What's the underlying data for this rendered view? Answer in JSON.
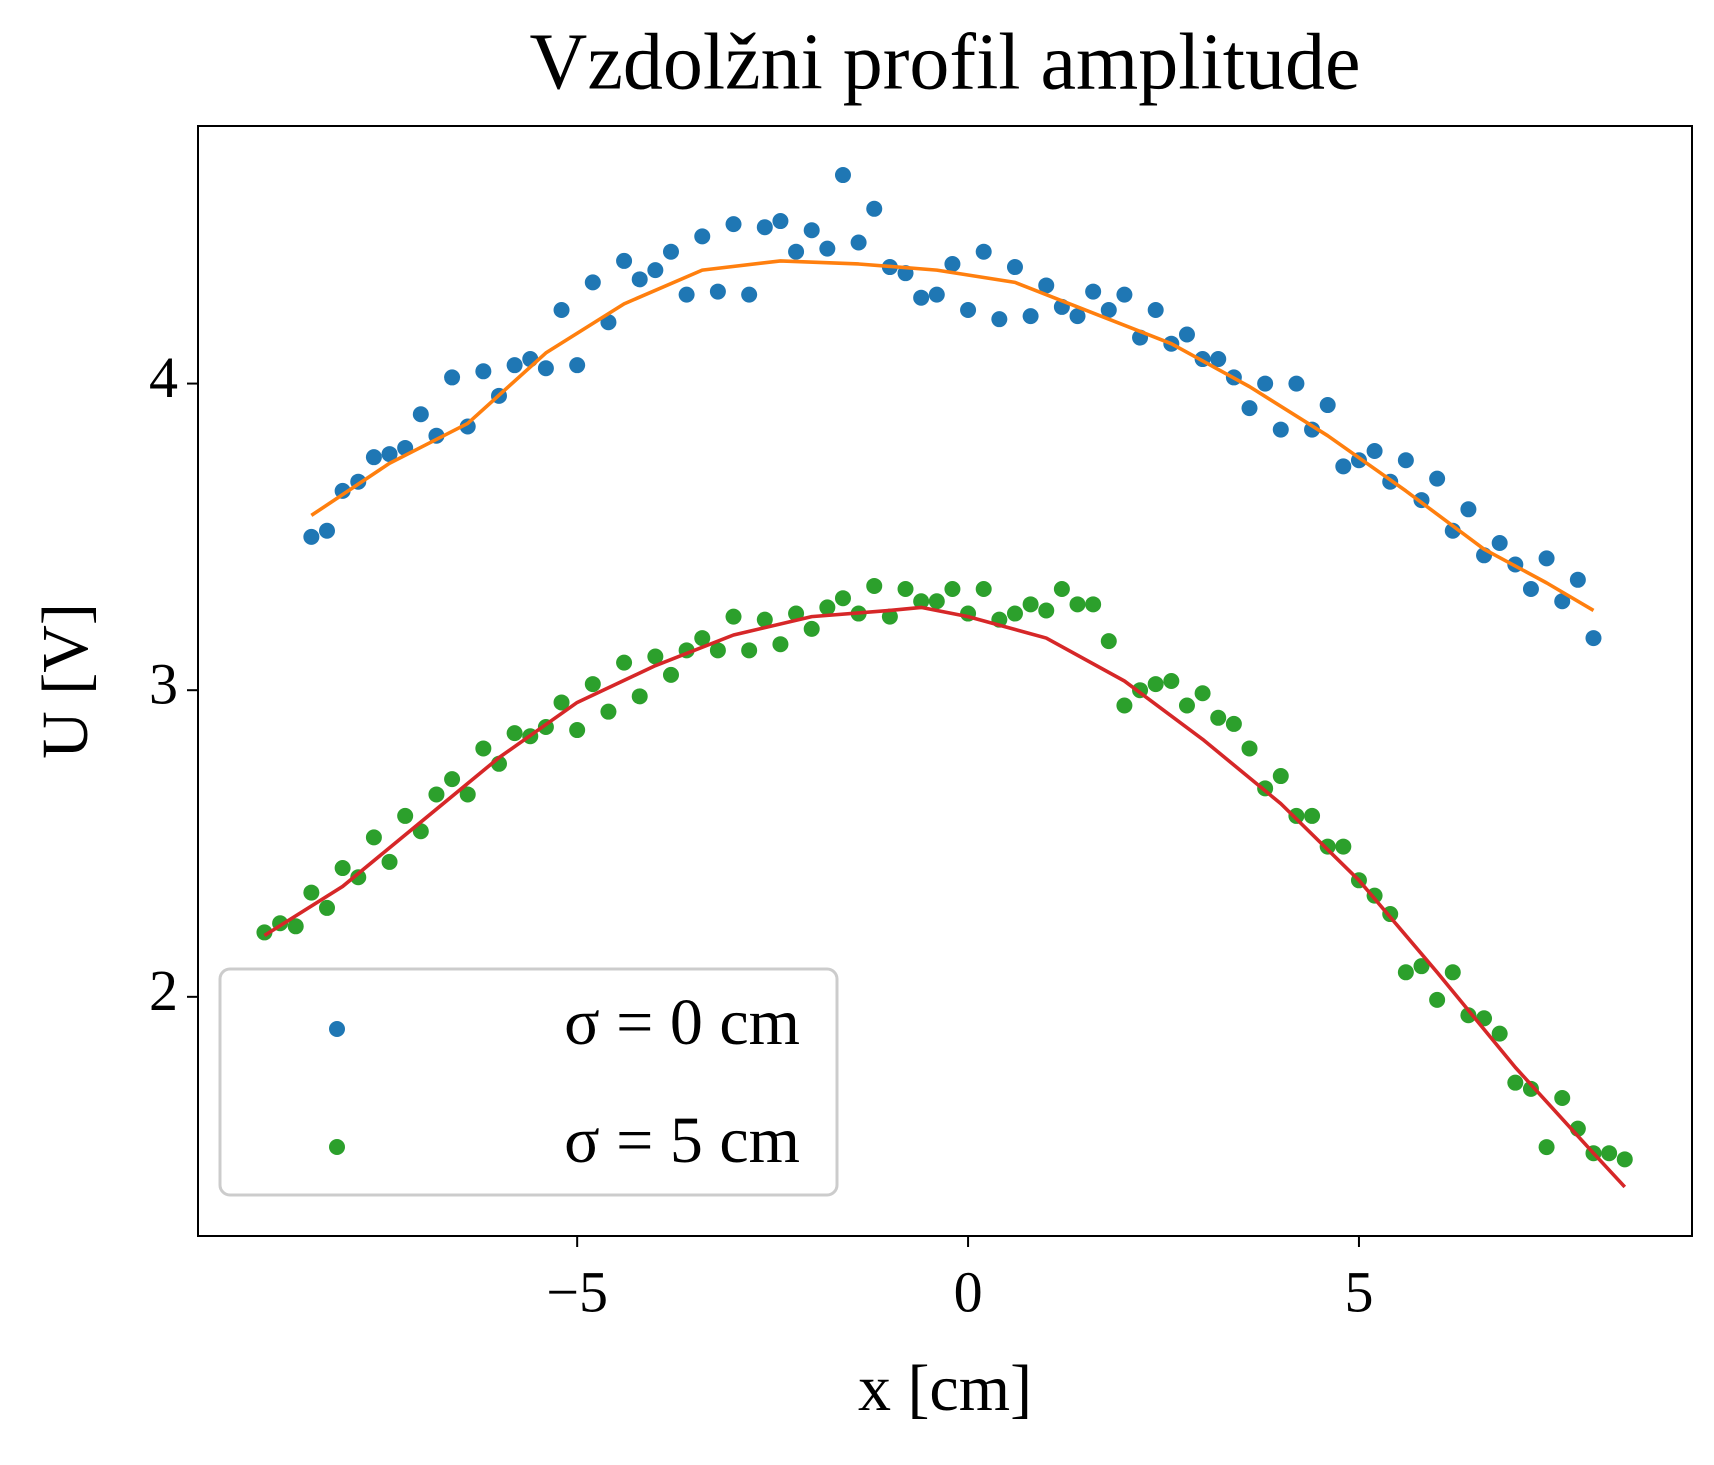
{
  "chart_data": {
    "type": "scatter",
    "title": "Vzdolžni profil amplitude",
    "xlabel": "x [cm]",
    "ylabel": "U [V]",
    "xlim": [
      -9.85,
      9.26
    ],
    "ylim": [
      1.22,
      4.84
    ],
    "xticks": [
      {
        "value": -5,
        "label": "−5"
      },
      0,
      5
    ],
    "yticks": [
      2,
      3,
      4
    ],
    "legend": "lower left",
    "series": [
      {
        "name": "σ = 0 cm",
        "mode": "markers",
        "color": "#1f77b4",
        "x": [
          -8.4,
          -8.2,
          -8.0,
          -7.8,
          -7.6,
          -7.4,
          -7.2,
          -7.0,
          -6.8,
          -6.6,
          -6.4,
          -6.2,
          -6.0,
          -5.8,
          -5.6,
          -5.4,
          -5.2,
          -5.0,
          -4.8,
          -4.6,
          -4.4,
          -4.2,
          -4.0,
          -3.8,
          -3.6,
          -3.4,
          -3.2,
          -3.0,
          -2.8,
          -2.6,
          -2.4,
          -2.2,
          -2.0,
          -1.8,
          -1.6,
          -1.4,
          -1.2,
          -1.0,
          -0.8,
          -0.6,
          -0.4,
          -0.2,
          0.0,
          0.2,
          0.4,
          0.6,
          0.8,
          1.0,
          1.2,
          1.4,
          1.6,
          1.8,
          2.0,
          2.2,
          2.4,
          2.6,
          2.8,
          3.0,
          3.2,
          3.4,
          3.6,
          3.8,
          4.0,
          4.2,
          4.4,
          4.6,
          4.8,
          5.0,
          5.2,
          5.4,
          5.6,
          5.8,
          6.0,
          6.2,
          6.4,
          6.6,
          6.8,
          7.0,
          7.2,
          7.4,
          7.6,
          7.8,
          8.0
        ],
        "values": [
          3.5,
          3.52,
          3.65,
          3.68,
          3.76,
          3.77,
          3.79,
          3.9,
          3.83,
          4.02,
          3.86,
          4.04,
          3.96,
          4.06,
          4.08,
          4.05,
          4.24,
          4.06,
          4.33,
          4.2,
          4.4,
          4.34,
          4.37,
          4.43,
          4.29,
          4.48,
          4.3,
          4.52,
          4.29,
          4.51,
          4.53,
          4.43,
          4.5,
          4.44,
          4.68,
          4.46,
          4.57,
          4.38,
          4.36,
          4.28,
          4.29,
          4.39,
          4.24,
          4.43,
          4.21,
          4.38,
          4.22,
          4.32,
          4.25,
          4.22,
          4.3,
          4.24,
          4.29,
          4.15,
          4.24,
          4.13,
          4.16,
          4.08,
          4.08,
          4.02,
          3.92,
          4.0,
          3.85,
          4.0,
          3.85,
          3.93,
          3.73,
          3.75,
          3.78,
          3.68,
          3.75,
          3.62,
          3.69,
          3.52,
          3.59,
          3.44,
          3.48,
          3.41,
          3.33,
          3.43,
          3.29,
          3.36,
          3.17
        ]
      },
      {
        "name": "σ = 5 cm",
        "mode": "markers",
        "color": "#2ca02c",
        "x": [
          -9.0,
          -8.8,
          -8.6,
          -8.4,
          -8.2,
          -8.0,
          -7.8,
          -7.6,
          -7.4,
          -7.2,
          -7.0,
          -6.8,
          -6.6,
          -6.4,
          -6.2,
          -6.0,
          -5.8,
          -5.6,
          -5.4,
          -5.2,
          -5.0,
          -4.8,
          -4.6,
          -4.4,
          -4.2,
          -4.0,
          -3.8,
          -3.6,
          -3.4,
          -3.2,
          -3.0,
          -2.8,
          -2.6,
          -2.4,
          -2.2,
          -2.0,
          -1.8,
          -1.6,
          -1.4,
          -1.2,
          -1.0,
          -0.8,
          -0.6,
          -0.4,
          -0.2,
          0.0,
          0.2,
          0.4,
          0.6,
          0.8,
          1.0,
          1.2,
          1.4,
          1.6,
          1.8,
          2.0,
          2.2,
          2.4,
          2.6,
          2.8,
          3.0,
          3.2,
          3.4,
          3.6,
          3.8,
          4.0,
          4.2,
          4.4,
          4.6,
          4.8,
          5.0,
          5.2,
          5.4,
          5.6,
          5.8,
          6.0,
          6.2,
          6.4,
          6.6,
          6.8,
          7.0,
          7.2,
          7.4,
          7.6,
          7.8,
          8.0,
          8.2,
          8.4
        ],
        "values": [
          2.21,
          2.24,
          2.23,
          2.34,
          2.29,
          2.42,
          2.39,
          2.52,
          2.44,
          2.59,
          2.54,
          2.66,
          2.71,
          2.66,
          2.81,
          2.76,
          2.86,
          2.85,
          2.88,
          2.96,
          2.87,
          3.02,
          2.93,
          3.09,
          2.98,
          3.11,
          3.05,
          3.13,
          3.17,
          3.13,
          3.24,
          3.13,
          3.23,
          3.15,
          3.25,
          3.2,
          3.27,
          3.3,
          3.25,
          3.34,
          3.24,
          3.33,
          3.29,
          3.29,
          3.33,
          3.25,
          3.33,
          3.23,
          3.25,
          3.28,
          3.26,
          3.33,
          3.28,
          3.28,
          3.16,
          2.95,
          3.0,
          3.02,
          3.03,
          2.95,
          2.99,
          2.91,
          2.89,
          2.81,
          2.68,
          2.72,
          2.59,
          2.59,
          2.49,
          2.49,
          2.38,
          2.33,
          2.27,
          2.08,
          2.1,
          1.99,
          2.08,
          1.94,
          1.93,
          1.88,
          1.72,
          1.7,
          1.51,
          1.67,
          1.57,
          1.49,
          1.49,
          1.47
        ]
      },
      {
        "mode": "lines",
        "color": "#ff7f0e",
        "x": [
          -8.4,
          -7.4,
          -6.4,
          -5.4,
          -4.4,
          -3.4,
          -2.4,
          -1.4,
          -0.4,
          0.6,
          1.6,
          2.6,
          3.6,
          4.6,
          5.6,
          6.6,
          7.4,
          8.0
        ],
        "values": [
          3.57,
          3.74,
          3.87,
          4.1,
          4.26,
          4.37,
          4.4,
          4.39,
          4.37,
          4.33,
          4.23,
          4.13,
          3.99,
          3.83,
          3.65,
          3.46,
          3.35,
          3.26
        ]
      },
      {
        "mode": "lines",
        "color": "#d62728",
        "x": [
          -9.0,
          -8.0,
          -7.0,
          -6.0,
          -5.0,
          -4.0,
          -3.0,
          -2.0,
          -1.0,
          -0.6,
          0.0,
          1.0,
          2.0,
          3.0,
          4.0,
          5.0,
          6.0,
          7.0,
          8.0,
          8.4
        ],
        "values": [
          2.2,
          2.36,
          2.57,
          2.78,
          2.96,
          3.08,
          3.18,
          3.24,
          3.26,
          3.27,
          3.24,
          3.17,
          3.03,
          2.84,
          2.63,
          2.38,
          2.08,
          1.77,
          1.49,
          1.38
        ]
      }
    ]
  }
}
